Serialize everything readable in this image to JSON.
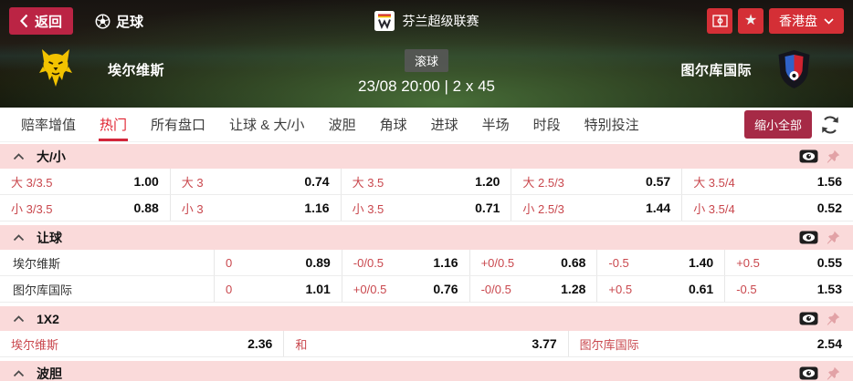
{
  "colors": {
    "top_accent_red": "#d42f36",
    "back_button_red": "#bb2444",
    "collapse_button_red": "#a62a46",
    "active_tab_red": "#e02230",
    "section_header_pink": "#fadada",
    "odds_label_red": "#c9474d",
    "home_logo_yellow": "#f2c300",
    "away_logo_blue": "#2f62c8",
    "away_logo_red": "#cf2330"
  },
  "icons": {
    "back": "chevron-left",
    "sport": "football",
    "league_badge": "league-crest",
    "pitch": "field-overview",
    "favorite": "star",
    "market_dropdown": "chevron-down",
    "refresh": "refresh-arrows",
    "section_collapse": "chevron-up",
    "cashout": "eye-badge",
    "pin": "pushpin"
  },
  "topbar": {
    "back_label": "返回",
    "sport_label": "足球",
    "league_name": "芬兰超级联赛",
    "market_type_label": "香港盘"
  },
  "match": {
    "home_team": "埃尔维斯",
    "away_team": "图尔库国际",
    "live_badge": "滚球",
    "datetime": "23/08 20:00 | 2 x 45"
  },
  "tabs": {
    "items": [
      {
        "label": "赔率增值",
        "active": false
      },
      {
        "label": "热门",
        "active": true
      },
      {
        "label": "所有盘口",
        "active": false
      },
      {
        "label": "让球 & 大/小",
        "active": false
      },
      {
        "label": "波胆",
        "active": false
      },
      {
        "label": "角球",
        "active": false
      },
      {
        "label": "进球",
        "active": false
      },
      {
        "label": "半场",
        "active": false
      },
      {
        "label": "时段",
        "active": false
      },
      {
        "label": "特别投注",
        "active": false
      }
    ],
    "collapse_all_label": "缩小全部"
  },
  "sections": [
    {
      "id": "over-under",
      "title": "大/小",
      "layout": "pairs5",
      "rows": [
        {
          "cells": [
            {
              "label": "大 3/3.5",
              "odds": "1.00"
            },
            {
              "label": "大 3",
              "odds": "0.74"
            },
            {
              "label": "大 3.5",
              "odds": "1.20"
            },
            {
              "label": "大 2.5/3",
              "odds": "0.57"
            },
            {
              "label": "大 3.5/4",
              "odds": "1.56"
            }
          ]
        },
        {
          "cells": [
            {
              "label": "小 3/3.5",
              "odds": "0.88"
            },
            {
              "label": "小 3",
              "odds": "1.16"
            },
            {
              "label": "小 3.5",
              "odds": "0.71"
            },
            {
              "label": "小 2.5/3",
              "odds": "1.44"
            },
            {
              "label": "小 3.5/4",
              "odds": "0.52"
            }
          ]
        }
      ]
    },
    {
      "id": "handicap",
      "title": "让球",
      "layout": "team5",
      "rows": [
        {
          "team": "埃尔维斯",
          "cells": [
            {
              "label": "0",
              "odds": "0.89"
            },
            {
              "label": "-0/0.5",
              "odds": "1.16"
            },
            {
              "label": "+0/0.5",
              "odds": "0.68"
            },
            {
              "label": "-0.5",
              "odds": "1.40"
            },
            {
              "label": "+0.5",
              "odds": "0.55"
            }
          ]
        },
        {
          "team": "图尔库国际",
          "cells": [
            {
              "label": "0",
              "odds": "1.01"
            },
            {
              "label": "+0/0.5",
              "odds": "0.76"
            },
            {
              "label": "-0/0.5",
              "odds": "1.28"
            },
            {
              "label": "+0.5",
              "odds": "0.61"
            },
            {
              "label": "-0.5",
              "odds": "1.53"
            }
          ]
        }
      ]
    },
    {
      "id": "1x2",
      "title": "1X2",
      "layout": "pairs3",
      "rows": [
        {
          "cells": [
            {
              "label": "埃尔维斯",
              "odds": "2.36"
            },
            {
              "label": "和",
              "odds": "3.77"
            },
            {
              "label": "图尔库国际",
              "odds": "2.54"
            }
          ]
        }
      ]
    },
    {
      "id": "correct-score",
      "title": "波胆",
      "layout": "pairs5",
      "rows": []
    }
  ]
}
